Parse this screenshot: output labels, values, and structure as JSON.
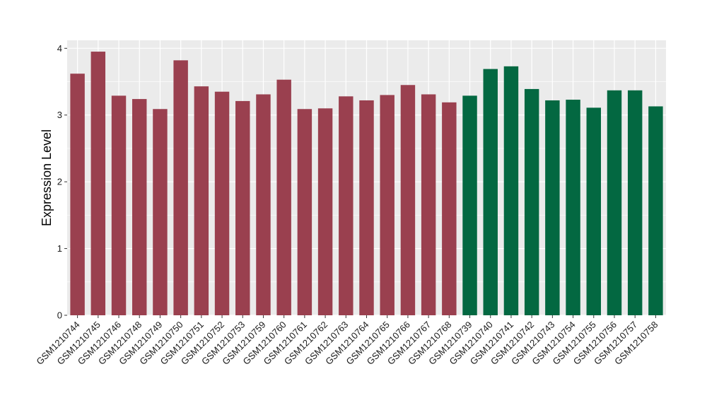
{
  "chart_data": {
    "type": "bar",
    "ylabel": "Expression Level",
    "xlabel": "",
    "ylim": [
      0,
      4.12
    ],
    "yticks": [
      0,
      1,
      2,
      3,
      4
    ],
    "grid": true,
    "colors": {
      "panel": "#ebebeb",
      "grid": "#ffffff",
      "group_a": "#9a404f",
      "group_b": "#036841"
    },
    "categories": [
      "GSM1210744",
      "GSM1210745",
      "GSM1210746",
      "GSM1210748",
      "GSM1210749",
      "GSM1210750",
      "GSM1210751",
      "GSM1210752",
      "GSM1210753",
      "GSM1210759",
      "GSM1210760",
      "GSM1210761",
      "GSM1210762",
      "GSM1210763",
      "GSM1210764",
      "GSM1210765",
      "GSM1210766",
      "GSM1210767",
      "GSM1210768",
      "GSM1210739",
      "GSM1210740",
      "GSM1210741",
      "GSM1210742",
      "GSM1210743",
      "GSM1210754",
      "GSM1210755",
      "GSM1210756",
      "GSM1210757",
      "GSM1210758"
    ],
    "values": [
      3.62,
      3.95,
      3.29,
      3.24,
      3.09,
      3.82,
      3.43,
      3.35,
      3.21,
      3.31,
      3.53,
      3.09,
      3.1,
      3.28,
      3.22,
      3.3,
      3.45,
      3.31,
      3.19,
      3.29,
      3.69,
      3.73,
      3.39,
      3.22,
      3.23,
      3.11,
      3.37,
      3.37,
      3.13
    ],
    "groups": [
      "a",
      "a",
      "a",
      "a",
      "a",
      "a",
      "a",
      "a",
      "a",
      "a",
      "a",
      "a",
      "a",
      "a",
      "a",
      "a",
      "a",
      "a",
      "a",
      "b",
      "b",
      "b",
      "b",
      "b",
      "b",
      "b",
      "b",
      "b",
      "b"
    ]
  }
}
